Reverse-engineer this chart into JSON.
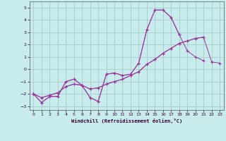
{
  "xlabel": "Windchill (Refroidissement éolien,°C)",
  "background_color": "#c8ecec",
  "grid_color": "#9fc4c4",
  "line_color": "#993399",
  "xlim": [
    -0.5,
    23.5
  ],
  "ylim": [
    -3.3,
    5.5
  ],
  "xticks": [
    0,
    1,
    2,
    3,
    4,
    5,
    6,
    7,
    8,
    9,
    10,
    11,
    12,
    13,
    14,
    15,
    16,
    17,
    18,
    19,
    20,
    21,
    22,
    23
  ],
  "yticks": [
    -3,
    -2,
    -1,
    0,
    1,
    2,
    3,
    4,
    5
  ],
  "series": [
    [
      -2.0,
      -2.7,
      -2.2,
      -2.2,
      -1.0,
      -0.8,
      -1.3,
      -2.3,
      -2.6,
      -0.4,
      -0.3,
      -0.5,
      -0.4,
      0.5,
      3.2,
      4.8,
      4.8,
      4.2,
      2.8,
      null,
      null,
      null,
      null,
      null
    ],
    [
      -2.0,
      -2.7,
      -2.2,
      -2.2,
      -1.0,
      -0.8,
      -1.3,
      -2.3,
      -2.6,
      -0.4,
      -0.3,
      -0.5,
      -0.4,
      0.5,
      3.2,
      4.8,
      4.8,
      4.2,
      2.8,
      1.5,
      1.0,
      0.7,
      null,
      null
    ],
    [
      -2.0,
      -2.3,
      -2.1,
      -1.9,
      -1.4,
      -1.2,
      -1.3,
      -1.6,
      -1.5,
      -1.2,
      -1.0,
      -0.8,
      -0.5,
      -0.2,
      0.4,
      0.8,
      1.3,
      1.7,
      2.1,
      2.3,
      2.5,
      2.6,
      null,
      null
    ],
    [
      -2.0,
      -2.3,
      -2.1,
      -1.9,
      -1.4,
      -1.2,
      -1.3,
      -1.6,
      -1.5,
      -1.2,
      -1.0,
      -0.8,
      -0.5,
      -0.2,
      0.4,
      0.8,
      1.3,
      1.7,
      2.1,
      2.3,
      2.5,
      2.6,
      0.6,
      0.5
    ]
  ]
}
